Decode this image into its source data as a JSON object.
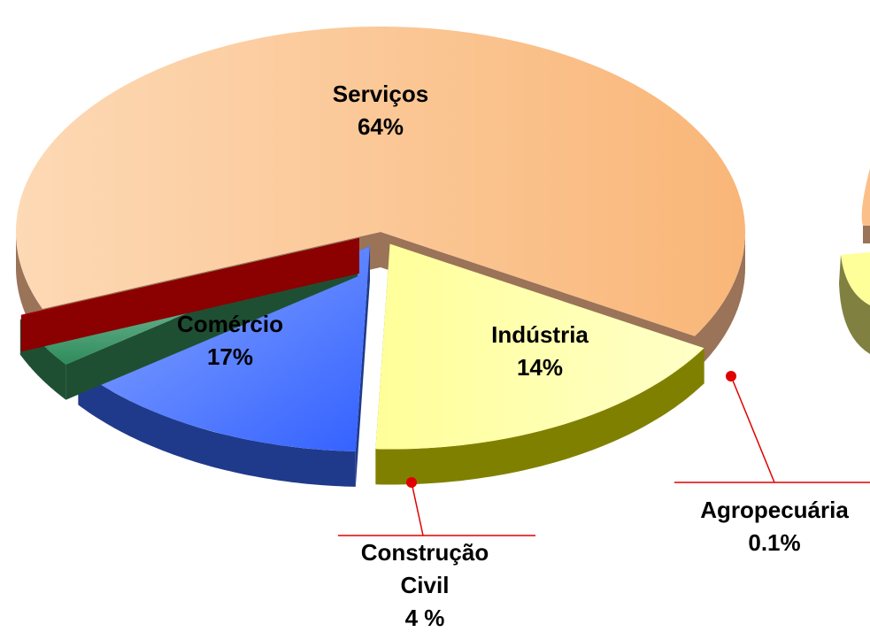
{
  "chart_data": {
    "type": "pie3d",
    "categories": [
      "Serviços",
      "Comércio",
      "Indústria",
      "Construção Civil",
      "Agropecuária"
    ],
    "values": [
      64,
      17,
      14,
      4,
      0.1
    ],
    "value_labels": [
      "64%",
      "17%",
      "14%",
      "4 %",
      "0.1%"
    ],
    "colors": [
      "#fbbf88",
      "#ffff8c",
      "#4a76ff",
      "#3a9a6a",
      "#8b0000"
    ]
  }
}
